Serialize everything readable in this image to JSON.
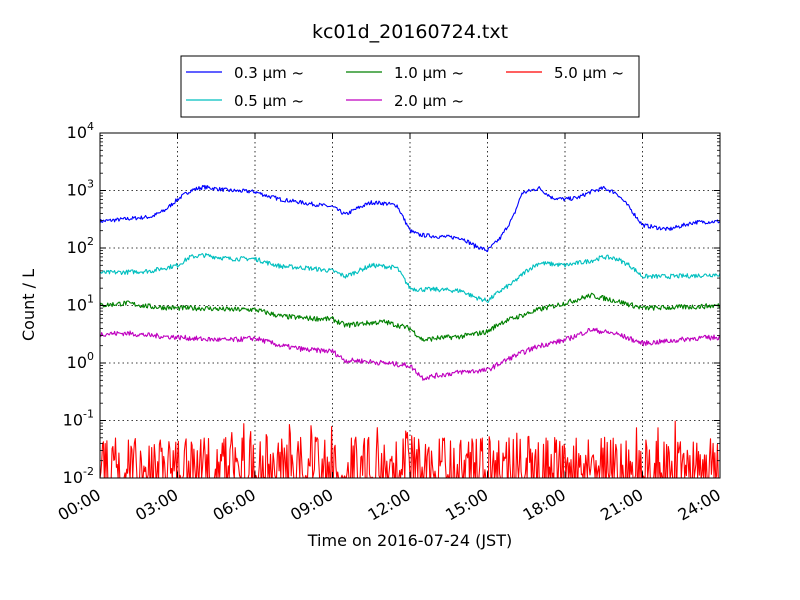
{
  "chart_data": {
    "type": "line",
    "title": "kc01d_20160724.txt",
    "xlabel": "Time on 2016-07-24 (JST)",
    "ylabel": "Count / L",
    "yscale": "log",
    "ylim": [
      0.01,
      10000
    ],
    "xlim": [
      "2016-07-24 00:00",
      "2016-07-25 00:00"
    ],
    "x_tick_labels": [
      "00:00",
      "03:00",
      "06:00",
      "09:00",
      "12:00",
      "15:00",
      "18:00",
      "21:00",
      "24:00"
    ],
    "y_ticks": [
      {
        "base": "10",
        "exp": "-2"
      },
      {
        "base": "10",
        "exp": "-1"
      },
      {
        "base": "10",
        "exp": "0"
      },
      {
        "base": "10",
        "exp": "1"
      },
      {
        "base": "10",
        "exp": "2"
      },
      {
        "base": "10",
        "exp": "3"
      },
      {
        "base": "10",
        "exp": "4"
      }
    ],
    "grid": true,
    "legend_position": "top-center",
    "series": [
      {
        "name": "0.3 µm ~",
        "color": "#0000ff",
        "x": [
          "00:00",
          "01:00",
          "02:00",
          "02:30",
          "03:00",
          "03:30",
          "04:00",
          "04:20",
          "05:00",
          "06:00",
          "06:30",
          "07:00",
          "08:00",
          "09:00",
          "09:30",
          "10:00",
          "10:30",
          "11:00",
          "11:30",
          "12:00",
          "12:20",
          "13:00",
          "14:00",
          "14:30",
          "15:00",
          "15:30",
          "16:00",
          "16:20",
          "17:00",
          "17:30",
          "18:00",
          "18:30",
          "19:00",
          "19:30",
          "20:00",
          "20:30",
          "21:00",
          "22:00",
          "23:00",
          "24:00"
        ],
        "y": [
          290,
          320,
          350,
          450,
          700,
          1000,
          1150,
          1100,
          1000,
          950,
          800,
          700,
          600,
          520,
          380,
          500,
          620,
          600,
          550,
          200,
          170,
          160,
          150,
          110,
          90,
          150,
          350,
          900,
          1100,
          750,
          700,
          750,
          950,
          1100,
          900,
          500,
          250,
          210,
          280,
          290
        ]
      },
      {
        "name": "0.5 µm ~",
        "color": "#00bfbf",
        "x": [
          "00:00",
          "01:00",
          "02:00",
          "02:30",
          "03:00",
          "03:30",
          "04:00",
          "04:30",
          "05:00",
          "06:00",
          "06:30",
          "07:00",
          "08:00",
          "09:00",
          "09:30",
          "10:00",
          "10:30",
          "11:00",
          "11:30",
          "12:00",
          "12:20",
          "13:00",
          "14:00",
          "14:30",
          "15:00",
          "15:30",
          "16:00",
          "16:30",
          "17:00",
          "18:00",
          "19:00",
          "19:30",
          "20:00",
          "20:30",
          "21:00",
          "22:00",
          "23:00",
          "24:00"
        ],
        "y": [
          37,
          38,
          40,
          45,
          50,
          70,
          75,
          70,
          65,
          65,
          55,
          48,
          45,
          40,
          32,
          40,
          50,
          48,
          45,
          20,
          19,
          19,
          18,
          14,
          12,
          18,
          25,
          40,
          55,
          50,
          60,
          70,
          65,
          50,
          32,
          32,
          33,
          35
        ]
      },
      {
        "name": "1.0 µm ~",
        "color": "#008000",
        "x": [
          "00:00",
          "01:00",
          "02:00",
          "03:00",
          "04:00",
          "05:00",
          "06:00",
          "07:00",
          "08:00",
          "09:00",
          "09:30",
          "10:00",
          "11:00",
          "12:00",
          "12:30",
          "13:00",
          "14:00",
          "15:00",
          "15:30",
          "16:00",
          "17:00",
          "18:00",
          "19:00",
          "20:00",
          "21:00",
          "22:00",
          "23:00",
          "24:00"
        ],
        "y": [
          10,
          11,
          9.5,
          9,
          9,
          8.5,
          8.5,
          6.5,
          6,
          5.8,
          4.5,
          4.8,
          5.2,
          4.0,
          2.5,
          2.7,
          2.9,
          3.5,
          5.0,
          6.0,
          8.5,
          11,
          15,
          12,
          9,
          9.2,
          9.5,
          10
        ]
      },
      {
        "name": "2.0 µm ~",
        "color": "#bf00bf",
        "x": [
          "00:00",
          "01:00",
          "02:00",
          "03:00",
          "04:00",
          "05:00",
          "06:00",
          "07:00",
          "08:00",
          "09:00",
          "09:30",
          "10:00",
          "11:00",
          "12:00",
          "12:30",
          "13:00",
          "14:00",
          "15:00",
          "15:30",
          "16:00",
          "17:00",
          "18:00",
          "19:00",
          "20:00",
          "21:00",
          "22:00",
          "23:00",
          "24:00"
        ],
        "y": [
          3.2,
          3.3,
          3.0,
          2.8,
          2.6,
          2.5,
          2.7,
          2.0,
          1.7,
          1.6,
          1.1,
          1.1,
          1.0,
          0.9,
          0.55,
          0.6,
          0.7,
          0.75,
          1.0,
          1.3,
          2.0,
          2.5,
          3.8,
          3.2,
          2.2,
          2.4,
          2.7,
          2.8
        ]
      },
      {
        "name": "5.0 µm ~",
        "color": "#ff0000",
        "description_values": "noisy near detection floor",
        "x": [
          "00:00",
          "24:00"
        ],
        "y": [
          0.01,
          0.01
        ],
        "range": [
          0.01,
          0.1
        ]
      }
    ]
  }
}
